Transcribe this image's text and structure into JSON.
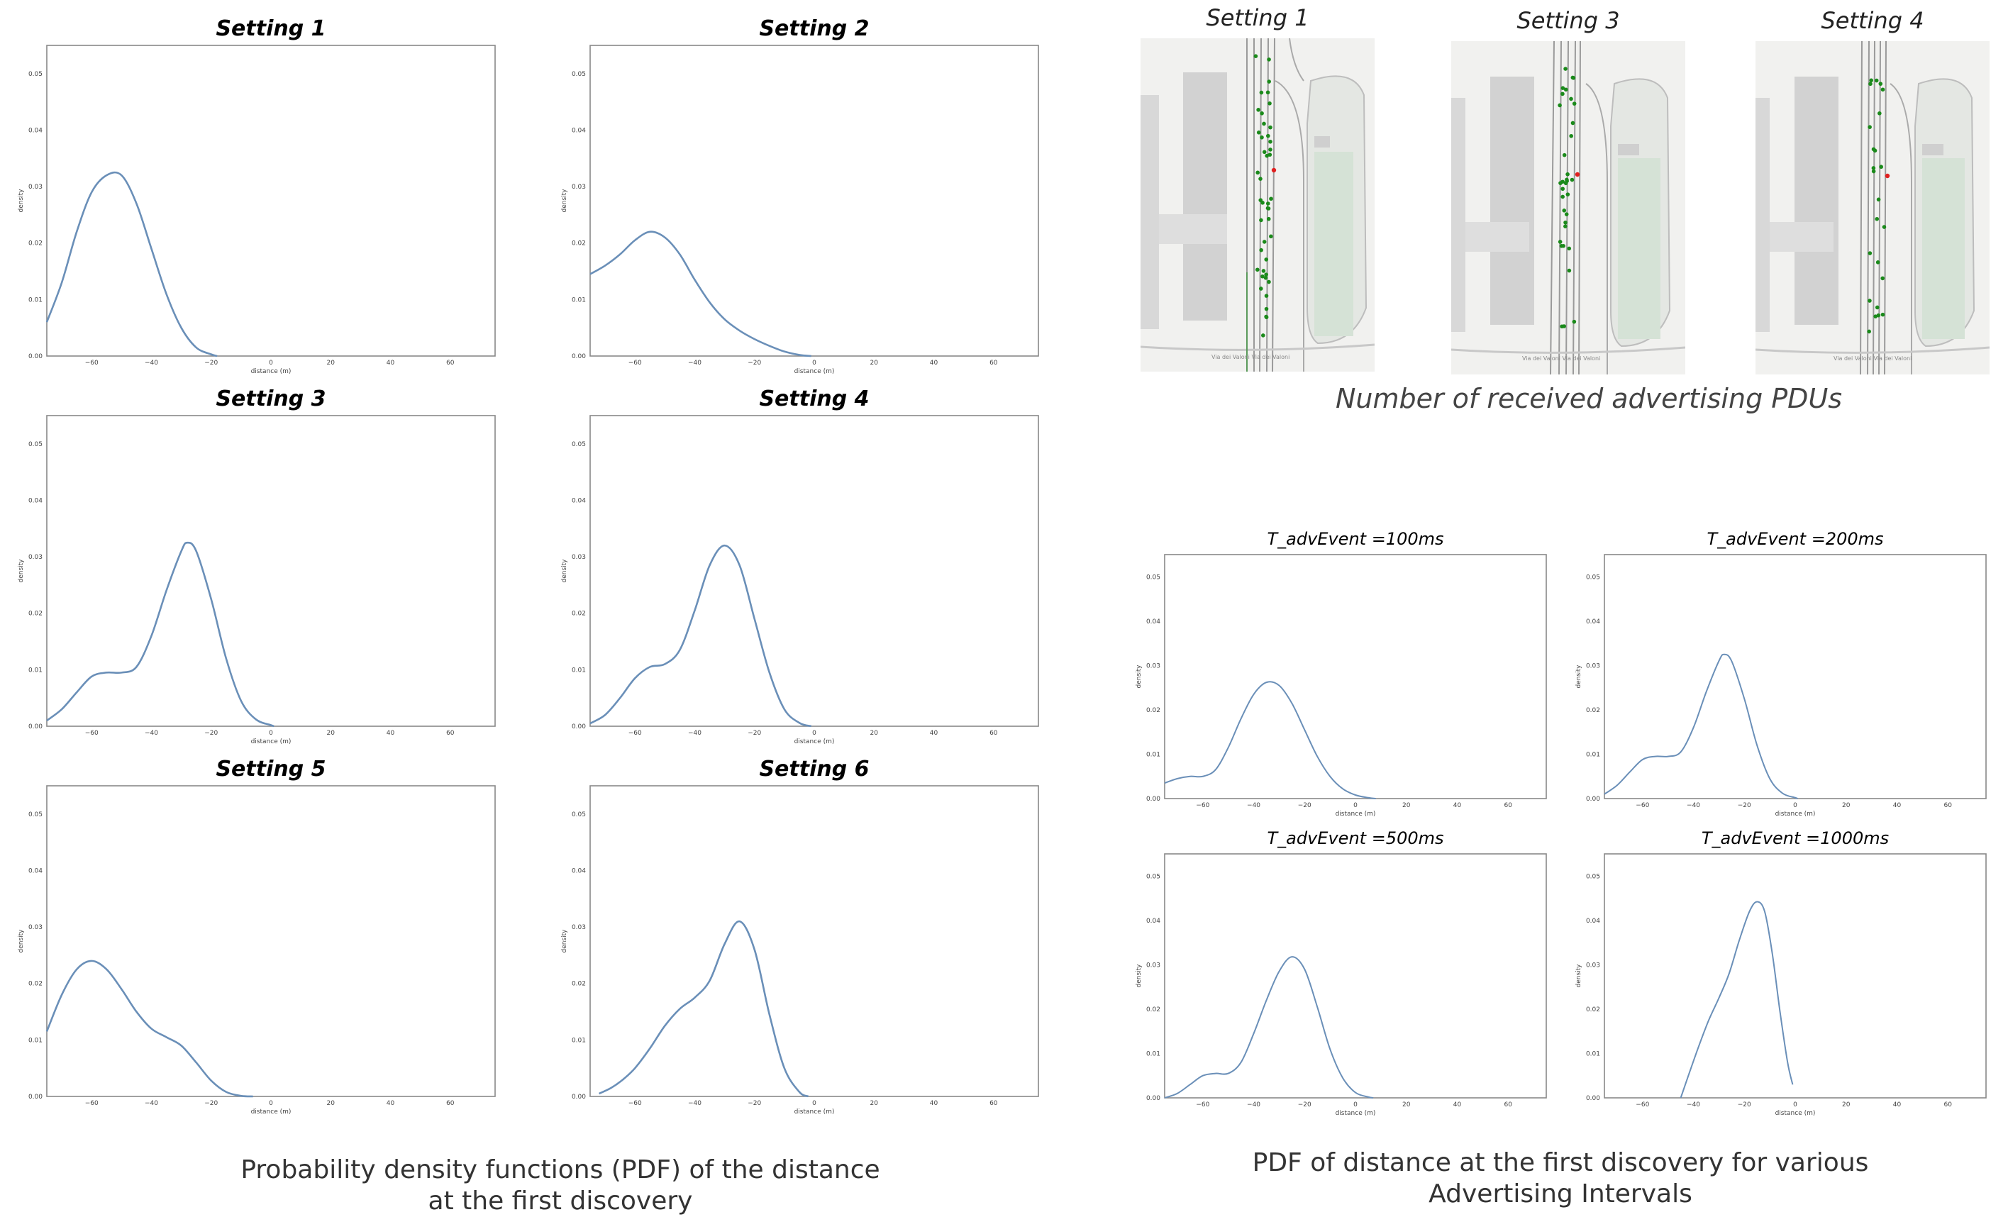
{
  "left_caption": [
    "Probability density functions (PDF) of the distance",
    "at the first discovery"
  ],
  "map_caption": "Number of received advertising PDUs",
  "right_caption": [
    "PDF of distance at the first discovery for various",
    "Advertising Intervals"
  ],
  "maps": [
    {
      "title": "Setting 1",
      "street": "Via dei Valoni Via dei Valoni"
    },
    {
      "title": "Setting 3",
      "street": "Via dei Valoni Via dei Valoni"
    },
    {
      "title": "Setting 4",
      "street": "Via dei Valoni Via dei Valoni"
    }
  ],
  "colors": {
    "curve": "#6a8fb8",
    "frame": "#888888",
    "marker_green": "#1b8a1b",
    "marker_red": "#e02020"
  },
  "chart_data": [
    {
      "type": "line",
      "title": "Setting 1",
      "xlabel": "distance (m)",
      "ylabel": "density",
      "xlim": [
        -75,
        75
      ],
      "ylim": [
        0,
        0.055
      ],
      "xticks": [
        -60,
        -40,
        -20,
        0,
        20,
        40,
        60
      ],
      "yticks": [
        0.0,
        0.01,
        0.02,
        0.03,
        0.04,
        0.05
      ],
      "series": [
        {
          "x": [
            -75,
            -70,
            -65,
            -60,
            -55,
            -50,
            -45,
            -40,
            -35,
            -30,
            -25,
            -20,
            -18
          ],
          "y": [
            0.006,
            0.013,
            0.022,
            0.029,
            0.032,
            0.032,
            0.027,
            0.019,
            0.011,
            0.005,
            0.0015,
            0.0003,
            0.0
          ]
        }
      ]
    },
    {
      "type": "line",
      "title": "Setting 2",
      "xlabel": "distance (m)",
      "ylabel": "density",
      "xlim": [
        -75,
        75
      ],
      "ylim": [
        0,
        0.055
      ],
      "xticks": [
        -60,
        -40,
        -20,
        0,
        20,
        40,
        60
      ],
      "yticks": [
        0.0,
        0.01,
        0.02,
        0.03,
        0.04,
        0.05
      ],
      "series": [
        {
          "x": [
            -75,
            -70,
            -65,
            -60,
            -55,
            -50,
            -45,
            -40,
            -35,
            -30,
            -25,
            -20,
            -15,
            -10,
            -5,
            -1
          ],
          "y": [
            0.0145,
            0.016,
            0.018,
            0.0205,
            0.022,
            0.021,
            0.018,
            0.0135,
            0.0095,
            0.0065,
            0.0045,
            0.003,
            0.0018,
            0.0008,
            0.0002,
            0.0
          ]
        }
      ]
    },
    {
      "type": "line",
      "title": "Setting 3",
      "xlabel": "distance (m)",
      "ylabel": "density",
      "xlim": [
        -75,
        75
      ],
      "ylim": [
        0,
        0.055
      ],
      "xticks": [
        -60,
        -40,
        -20,
        0,
        20,
        40,
        60
      ],
      "yticks": [
        0.0,
        0.01,
        0.02,
        0.03,
        0.04,
        0.05
      ],
      "series": [
        {
          "x": [
            -75,
            -70,
            -65,
            -60,
            -55,
            -50,
            -45,
            -40,
            -35,
            -30,
            -28,
            -25,
            -20,
            -15,
            -10,
            -5,
            0,
            1
          ],
          "y": [
            0.001,
            0.003,
            0.006,
            0.0088,
            0.0095,
            0.0095,
            0.0105,
            0.016,
            0.024,
            0.031,
            0.0325,
            0.031,
            0.0225,
            0.012,
            0.0045,
            0.0012,
            0.0002,
            0.0
          ]
        }
      ]
    },
    {
      "type": "line",
      "title": "Setting 4",
      "xlabel": "distance (m)",
      "ylabel": "density",
      "xlim": [
        -75,
        75
      ],
      "ylim": [
        0,
        0.055
      ],
      "xticks": [
        -60,
        -40,
        -20,
        0,
        20,
        40,
        60
      ],
      "yticks": [
        0.0,
        0.01,
        0.02,
        0.03,
        0.04,
        0.05
      ],
      "series": [
        {
          "x": [
            -75,
            -70,
            -65,
            -60,
            -55,
            -50,
            -45,
            -40,
            -35,
            -30,
            -25,
            -20,
            -15,
            -10,
            -5,
            -1
          ],
          "y": [
            0.0005,
            0.002,
            0.005,
            0.0085,
            0.0105,
            0.011,
            0.0135,
            0.0205,
            0.0285,
            0.032,
            0.0285,
            0.019,
            0.0095,
            0.003,
            0.0006,
            0.0
          ]
        }
      ]
    },
    {
      "type": "line",
      "title": "Setting 5",
      "xlabel": "distance (m)",
      "ylabel": "density",
      "xlim": [
        -75,
        75
      ],
      "ylim": [
        0,
        0.055
      ],
      "xticks": [
        -60,
        -40,
        -20,
        0,
        20,
        40,
        60
      ],
      "yticks": [
        0.0,
        0.01,
        0.02,
        0.03,
        0.04,
        0.05
      ],
      "series": [
        {
          "x": [
            -75,
            -70,
            -65,
            -60,
            -55,
            -50,
            -45,
            -40,
            -35,
            -30,
            -25,
            -20,
            -15,
            -10,
            -6
          ],
          "y": [
            0.0115,
            0.018,
            0.0225,
            0.024,
            0.0225,
            0.019,
            0.015,
            0.012,
            0.0105,
            0.009,
            0.006,
            0.0028,
            0.0008,
            0.0001,
            0.0
          ]
        }
      ]
    },
    {
      "type": "line",
      "title": "Setting 6",
      "xlabel": "distance (m)",
      "ylabel": "density",
      "xlim": [
        -75,
        75
      ],
      "ylim": [
        0,
        0.055
      ],
      "xticks": [
        -60,
        -40,
        -20,
        0,
        20,
        40,
        60
      ],
      "yticks": [
        0.0,
        0.01,
        0.02,
        0.03,
        0.04,
        0.05
      ],
      "series": [
        {
          "x": [
            -72,
            -68,
            -64,
            -60,
            -55,
            -50,
            -45,
            -40,
            -35,
            -30,
            -25,
            -20,
            -15,
            -10,
            -5,
            -2
          ],
          "y": [
            0.0005,
            0.0015,
            0.003,
            0.005,
            0.0085,
            0.0125,
            0.0155,
            0.0175,
            0.0205,
            0.027,
            0.031,
            0.026,
            0.0145,
            0.005,
            0.0008,
            0.0
          ]
        }
      ]
    },
    {
      "type": "line",
      "title": "T_advEvent =100ms",
      "xlabel": "distance (m)",
      "ylabel": "density",
      "xlim": [
        -75,
        75
      ],
      "ylim": [
        0,
        0.055
      ],
      "xticks": [
        -60,
        -40,
        -20,
        0,
        20,
        40,
        60
      ],
      "yticks": [
        0.0,
        0.01,
        0.02,
        0.03,
        0.04,
        0.05
      ],
      "series": [
        {
          "x": [
            -75,
            -70,
            -65,
            -60,
            -55,
            -50,
            -45,
            -40,
            -35,
            -30,
            -25,
            -20,
            -15,
            -10,
            -5,
            0,
            5,
            8
          ],
          "y": [
            0.0035,
            0.0045,
            0.005,
            0.005,
            0.0065,
            0.0115,
            0.018,
            0.0235,
            0.0262,
            0.0255,
            0.0215,
            0.0155,
            0.0095,
            0.005,
            0.0022,
            0.0008,
            0.0002,
            0.0
          ]
        }
      ]
    },
    {
      "type": "line",
      "title": "T_advEvent =200ms",
      "xlabel": "distance (m)",
      "ylabel": "density",
      "xlim": [
        -75,
        75
      ],
      "ylim": [
        0,
        0.055
      ],
      "xticks": [
        -60,
        -40,
        -20,
        0,
        20,
        40,
        60
      ],
      "yticks": [
        0.0,
        0.01,
        0.02,
        0.03,
        0.04,
        0.05
      ],
      "series": [
        {
          "x": [
            -75,
            -70,
            -65,
            -60,
            -55,
            -50,
            -45,
            -40,
            -35,
            -30,
            -28,
            -25,
            -20,
            -15,
            -10,
            -5,
            0,
            1
          ],
          "y": [
            0.001,
            0.003,
            0.006,
            0.0088,
            0.0095,
            0.0095,
            0.0105,
            0.016,
            0.024,
            0.031,
            0.0325,
            0.031,
            0.0225,
            0.012,
            0.0045,
            0.0012,
            0.0002,
            0.0
          ]
        }
      ]
    },
    {
      "type": "line",
      "title": "T_advEvent =500ms",
      "xlabel": "distance (m)",
      "ylabel": "density",
      "xlim": [
        -75,
        75
      ],
      "ylim": [
        0,
        0.055
      ],
      "xticks": [
        -60,
        -40,
        -20,
        0,
        20,
        40,
        60
      ],
      "yticks": [
        0.0,
        0.01,
        0.02,
        0.03,
        0.04,
        0.05
      ],
      "series": [
        {
          "x": [
            -75,
            -70,
            -65,
            -60,
            -55,
            -50,
            -45,
            -40,
            -35,
            -30,
            -25,
            -20,
            -15,
            -10,
            -5,
            0,
            5,
            7
          ],
          "y": [
            0.0,
            0.001,
            0.003,
            0.005,
            0.0055,
            0.0055,
            0.008,
            0.0145,
            0.022,
            0.0285,
            0.0318,
            0.029,
            0.0205,
            0.011,
            0.0045,
            0.0012,
            0.0002,
            0.0
          ]
        }
      ]
    },
    {
      "type": "line",
      "title": "T_advEvent =1000ms",
      "xlabel": "distance (m)",
      "ylabel": "density",
      "xlim": [
        -75,
        75
      ],
      "ylim": [
        0,
        0.055
      ],
      "xticks": [
        -60,
        -40,
        -20,
        0,
        20,
        40,
        60
      ],
      "yticks": [
        0.0,
        0.01,
        0.02,
        0.03,
        0.04,
        0.05
      ],
      "series": [
        {
          "x": [
            -45,
            -42,
            -38,
            -34,
            -30,
            -26,
            -22,
            -18,
            -15,
            -12,
            -9,
            -6,
            -3,
            -1
          ],
          "y": [
            0.0,
            0.005,
            0.0115,
            0.0175,
            0.0225,
            0.028,
            0.0355,
            0.042,
            0.0442,
            0.042,
            0.0325,
            0.0195,
            0.008,
            0.003
          ]
        }
      ]
    }
  ]
}
